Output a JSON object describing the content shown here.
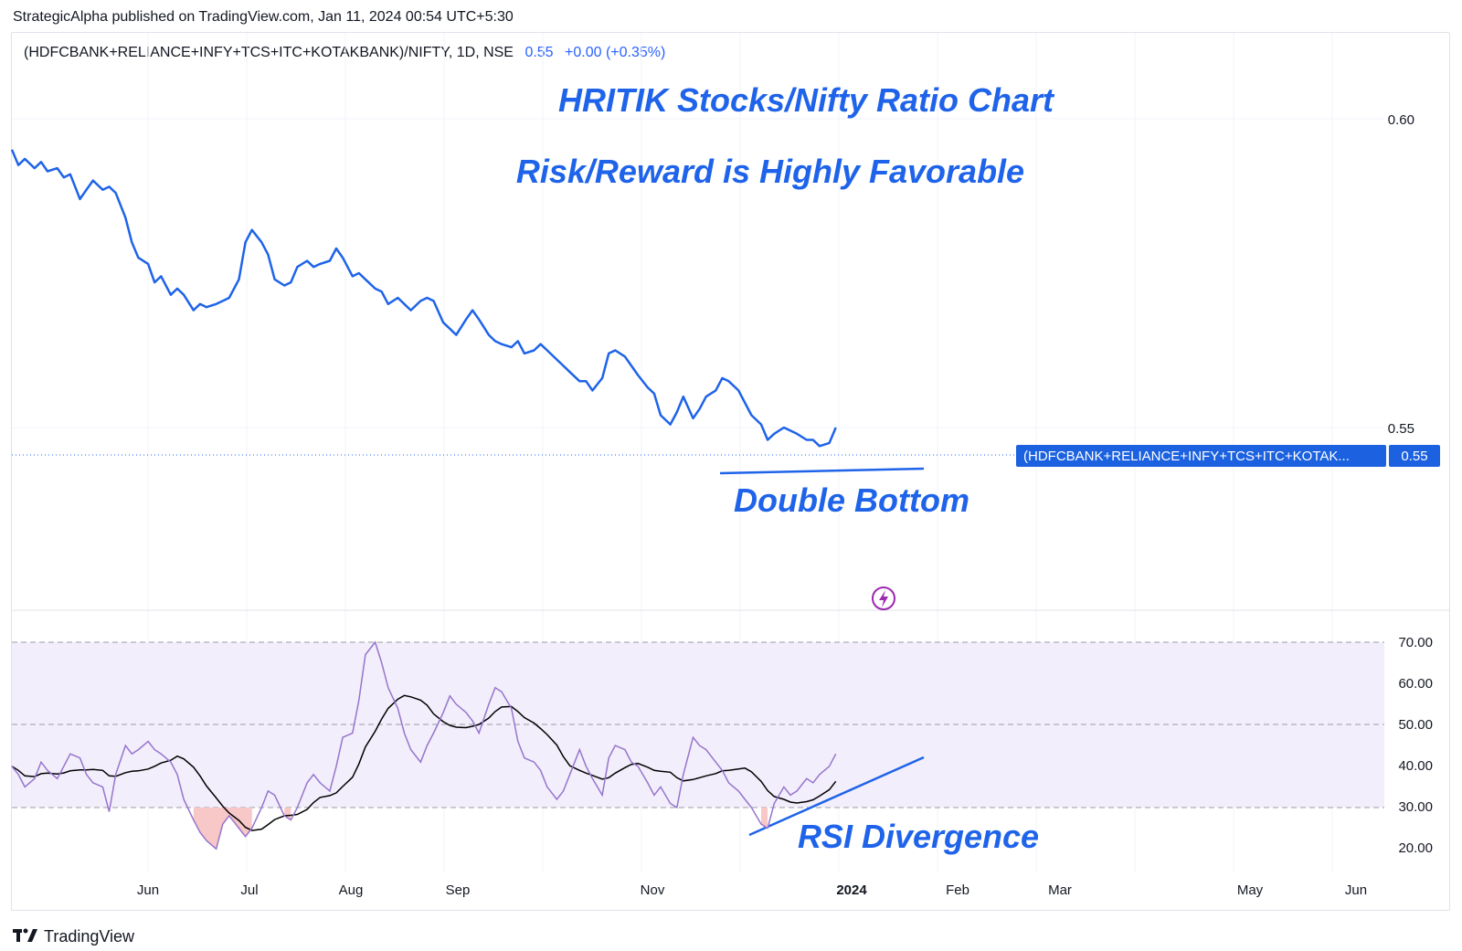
{
  "publisher_line": "StrategicAlpha published on TradingView.com, Jan 11, 2024 00:54 UTC+5:30",
  "legend": {
    "symbol": "(HDFCBANK+RELIANCE+INFY+TCS+ITC+KOTAKBANK)/NIFTY, 1D, NSE",
    "value": "0.55",
    "change": "+0.00 (+0.35%)"
  },
  "price_label": {
    "name": "(HDFCBANK+RELIANCE+INFY+TCS+ITC+KOTAK...",
    "value": "0.55"
  },
  "annotations": {
    "title": "HRITIK Stocks/Nifty Ratio Chart",
    "subtitle": "Risk/Reward is Highly Favorable",
    "double_bottom": "Double Bottom",
    "rsi_divergence": "RSI Divergence"
  },
  "colors": {
    "price_line": "#1e63e9",
    "annotation": "#1e63e9",
    "rsi_line": "#9575cd",
    "rsi_ma": "#000000",
    "rsi_band": "#f3eefb",
    "oversold_fill": "#f8c7c7",
    "label_bg": "#1b61e0",
    "grid": "#f0f3fa"
  },
  "footer": {
    "brand": "TradingView"
  },
  "chart_data": [
    {
      "type": "line",
      "name": "price",
      "y_axis_ticks": [
        "0.60",
        "0.55"
      ],
      "ylim": [
        0.4981,
        0.6316
      ],
      "x_axis_ticks": [
        "Jun",
        "Jul",
        "Aug",
        "Sep",
        "Nov",
        "2024",
        "Feb",
        "Mar",
        "May",
        "Jun"
      ],
      "x_start": "2023-05-01",
      "series": [
        {
          "x": [
            "2023-05-01",
            "2023-05-03",
            "2023-05-05",
            "2023-05-08",
            "2023-05-10",
            "2023-05-12",
            "2023-05-15",
            "2023-05-17",
            "2023-05-19",
            "2023-05-22",
            "2023-05-24",
            "2023-05-26",
            "2023-05-29",
            "2023-05-31",
            "2023-06-02",
            "2023-06-05",
            "2023-06-07",
            "2023-06-09",
            "2023-06-12",
            "2023-06-14",
            "2023-06-16",
            "2023-06-19",
            "2023-06-21",
            "2023-06-23",
            "2023-06-26",
            "2023-06-28",
            "2023-06-30",
            "2023-07-03",
            "2023-07-05",
            "2023-07-07",
            "2023-07-10",
            "2023-07-12",
            "2023-07-14",
            "2023-07-17",
            "2023-07-19",
            "2023-07-21",
            "2023-07-24",
            "2023-07-26",
            "2023-07-28",
            "2023-07-31",
            "2023-08-02",
            "2023-08-04",
            "2023-08-07",
            "2023-08-09",
            "2023-08-11",
            "2023-08-14",
            "2023-08-16",
            "2023-08-18",
            "2023-08-21",
            "2023-08-23",
            "2023-08-25",
            "2023-08-28",
            "2023-08-30",
            "2023-09-01",
            "2023-09-04",
            "2023-09-06",
            "2023-09-08",
            "2023-09-11",
            "2023-09-13",
            "2023-09-15",
            "2023-09-18",
            "2023-09-20",
            "2023-09-22",
            "2023-09-25",
            "2023-09-27",
            "2023-09-29",
            "2023-10-02",
            "2023-10-04",
            "2023-10-06",
            "2023-10-09",
            "2023-10-11",
            "2023-10-13",
            "2023-10-16",
            "2023-10-18",
            "2023-10-20",
            "2023-10-23",
            "2023-10-25",
            "2023-10-27",
            "2023-10-30",
            "2023-11-01",
            "2023-11-03",
            "2023-11-06",
            "2023-11-08",
            "2023-11-10",
            "2023-11-13",
            "2023-11-15",
            "2023-11-17",
            "2023-11-20",
            "2023-11-22",
            "2023-11-24",
            "2023-11-27",
            "2023-11-29",
            "2023-12-01",
            "2023-12-04",
            "2023-12-06",
            "2023-12-08",
            "2023-12-11",
            "2023-12-13",
            "2023-12-15",
            "2023-12-18",
            "2023-12-20",
            "2023-12-22",
            "2023-12-25",
            "2023-12-27",
            "2023-12-29",
            "2024-01-01",
            "2024-01-03",
            "2024-01-05",
            "2024-01-08",
            "2024-01-10"
          ],
          "y": [
            0.595,
            0.5925,
            0.5935,
            0.592,
            0.593,
            0.5915,
            0.592,
            0.5905,
            0.591,
            0.587,
            0.5885,
            0.59,
            0.5885,
            0.589,
            0.588,
            0.584,
            0.58,
            0.5775,
            0.5765,
            0.5735,
            0.5745,
            0.5715,
            0.5725,
            0.5715,
            0.569,
            0.57,
            0.5695,
            0.57,
            0.5705,
            0.571,
            0.574,
            0.58,
            0.582,
            0.58,
            0.578,
            0.574,
            0.573,
            0.5735,
            0.576,
            0.577,
            0.576,
            0.5765,
            0.577,
            0.579,
            0.5775,
            0.5745,
            0.575,
            0.574,
            0.5725,
            0.572,
            0.57,
            0.571,
            0.57,
            0.569,
            0.5705,
            0.571,
            0.5705,
            0.567,
            0.566,
            0.565,
            0.5675,
            0.569,
            0.5675,
            0.565,
            0.564,
            0.5635,
            0.563,
            0.564,
            0.562,
            0.5625,
            0.5635,
            0.5625,
            0.561,
            0.56,
            0.559,
            0.5575,
            0.5575,
            0.556,
            0.558,
            0.562,
            0.5625,
            0.5615,
            0.56,
            0.5585,
            0.5565,
            0.5555,
            0.552,
            0.5505,
            0.5525,
            0.555,
            0.5515,
            0.553,
            0.555,
            0.556,
            0.558,
            0.5575,
            0.556,
            0.554,
            0.552,
            0.5505,
            0.548,
            0.549,
            0.55,
            0.5495,
            0.549,
            0.548,
            0.548,
            0.547,
            0.5475,
            0.55
          ]
        }
      ]
    },
    {
      "type": "line",
      "name": "RSI",
      "y_axis_ticks": [
        "70.00",
        "60.00",
        "50.00",
        "40.00",
        "30.00",
        "20.00"
      ],
      "ylim": [
        12.5,
        77.7
      ],
      "levels": [
        70,
        50,
        30
      ],
      "series": [
        {
          "x_ref": "price",
          "values": [
            40,
            38,
            35,
            37,
            41,
            39,
            37,
            40,
            43,
            42,
            38,
            36,
            35,
            29,
            38,
            45,
            43,
            44,
            46,
            44,
            43,
            41,
            38,
            32,
            27,
            24,
            22,
            20,
            26,
            28,
            25,
            23,
            25,
            30,
            34,
            33,
            28,
            27,
            30,
            36,
            38,
            36,
            34,
            40,
            47,
            48,
            56,
            67,
            70,
            65,
            59,
            54,
            48,
            44,
            41,
            45,
            48,
            53,
            57,
            55,
            53,
            51,
            48,
            55,
            59,
            58,
            54,
            46,
            42,
            41,
            39,
            35,
            32,
            34,
            38,
            44,
            40,
            37,
            33,
            42,
            45,
            44,
            41,
            40,
            36,
            33,
            35,
            31,
            30,
            38,
            47,
            45,
            44,
            41,
            39,
            36,
            34,
            32,
            30,
            26,
            25,
            31,
            35,
            33,
            34,
            37,
            36,
            38,
            40,
            43
          ],
          "plot_as": "approximate-shape"
        },
        {
          "name": "RSI MA",
          "plot_as": "smooth"
        }
      ]
    }
  ]
}
